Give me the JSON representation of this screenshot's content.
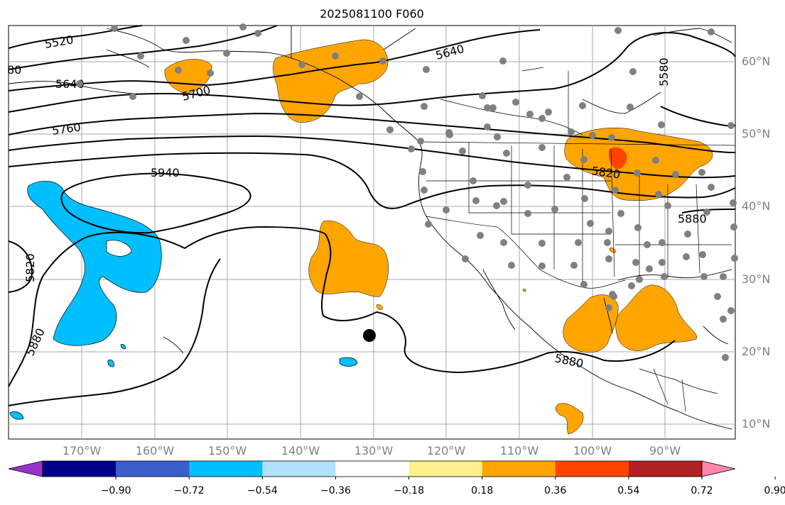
{
  "title": "2025081100 F060",
  "lon_labels": [
    "170°W",
    "160°W",
    "150°W",
    "140°W",
    "130°W",
    "120°W",
    "110°W",
    "100°W",
    "90°W"
  ],
  "lat_labels": [
    "60°N",
    "50°N",
    "40°N",
    "30°N",
    "20°N",
    "10°N"
  ],
  "contour_labels": [
    "5520",
    "80",
    "5640",
    "5700",
    "5760",
    "5940",
    "5640",
    "5580",
    "5820",
    "5880",
    "5820",
    "5880",
    "5880"
  ],
  "colorbar": {
    "ticks": [
      "−0.90",
      "−0.72",
      "−0.54",
      "−0.36",
      "−0.18",
      "0.18",
      "0.36",
      "0.54",
      "0.72",
      "0.90"
    ],
    "colors": [
      "#9932cc",
      "#00008b",
      "#3a5fcd",
      "#00bfff",
      "#b0e2ff",
      "#ffffff",
      "#fff08c",
      "#ffa500",
      "#ff4500",
      "#b22222",
      "#ff88aa"
    ]
  },
  "marker": "storm-center"
}
